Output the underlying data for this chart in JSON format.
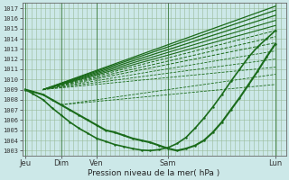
{
  "xlabel": "Pression niveau de la mer( hPa )",
  "bg_color": "#cce8e8",
  "grid_color": "#99bb99",
  "line_color": "#1a6b1a",
  "ylim": [
    1002.5,
    1017.5
  ],
  "yticks": [
    1003,
    1004,
    1005,
    1006,
    1007,
    1008,
    1009,
    1010,
    1011,
    1012,
    1013,
    1014,
    1015,
    1016,
    1017
  ],
  "xtick_labels": [
    "Jeu",
    "Dim",
    "Ven",
    "Sam",
    "Lun"
  ],
  "xtick_positions": [
    0,
    24,
    48,
    96,
    168
  ],
  "xlim": [
    -2,
    175
  ],
  "n_vlines": 58,
  "origin_x": 12,
  "origin_y": 1009.0,
  "lines": [
    {
      "points_x": [
        0,
        5,
        12,
        18,
        24,
        30,
        36,
        42,
        48,
        54,
        60,
        66,
        72,
        78,
        84,
        90,
        96,
        102,
        108,
        114,
        120,
        126,
        132,
        138,
        144,
        150,
        156,
        162,
        168
      ],
      "points_y": [
        1009,
        1008.8,
        1008.5,
        1008,
        1007.5,
        1007,
        1006.5,
        1006,
        1005.5,
        1005,
        1004.8,
        1004.5,
        1004.2,
        1004,
        1003.8,
        1003.5,
        1003.2,
        1003.0,
        1003.2,
        1003.5,
        1004.0,
        1004.8,
        1005.8,
        1007.0,
        1008.2,
        1009.5,
        1010.8,
        1012.2,
        1013.5
      ],
      "style": "-",
      "lw": 1.5,
      "marker": ".",
      "ms": 1.5,
      "zorder": 5
    },
    {
      "points_x": [
        12,
        168
      ],
      "points_y": [
        1009.0,
        1017.2
      ],
      "style": "-",
      "lw": 0.9,
      "marker": "none",
      "ms": 0,
      "zorder": 3
    },
    {
      "points_x": [
        12,
        168
      ],
      "points_y": [
        1009.0,
        1016.8
      ],
      "style": "-",
      "lw": 0.9,
      "marker": "none",
      "ms": 0,
      "zorder": 3
    },
    {
      "points_x": [
        12,
        168
      ],
      "points_y": [
        1009.0,
        1016.3
      ],
      "style": "-",
      "lw": 0.9,
      "marker": "none",
      "ms": 0,
      "zorder": 3
    },
    {
      "points_x": [
        12,
        168
      ],
      "points_y": [
        1009.0,
        1015.8
      ],
      "style": "-",
      "lw": 0.8,
      "marker": "none",
      "ms": 0,
      "zorder": 3
    },
    {
      "points_x": [
        12,
        168
      ],
      "points_y": [
        1009.0,
        1015.3
      ],
      "style": "-",
      "lw": 0.8,
      "marker": "none",
      "ms": 0,
      "zorder": 3
    },
    {
      "points_x": [
        12,
        168
      ],
      "points_y": [
        1009.0,
        1014.8
      ],
      "style": "--",
      "lw": 0.7,
      "marker": "none",
      "ms": 0,
      "zorder": 3
    },
    {
      "points_x": [
        12,
        168
      ],
      "points_y": [
        1009.0,
        1014.2
      ],
      "style": "--",
      "lw": 0.7,
      "marker": "none",
      "ms": 0,
      "zorder": 3
    },
    {
      "points_x": [
        12,
        168
      ],
      "points_y": [
        1009.0,
        1013.6
      ],
      "style": "--",
      "lw": 0.7,
      "marker": "none",
      "ms": 0,
      "zorder": 3
    },
    {
      "points_x": [
        12,
        168
      ],
      "points_y": [
        1009.0,
        1012.8
      ],
      "style": "--",
      "lw": 0.6,
      "marker": "none",
      "ms": 0,
      "zorder": 3
    },
    {
      "points_x": [
        12,
        168
      ],
      "points_y": [
        1009.0,
        1012.0
      ],
      "style": "--",
      "lw": 0.6,
      "marker": "none",
      "ms": 0,
      "zorder": 3
    },
    {
      "points_x": [
        12,
        168
      ],
      "points_y": [
        1009.0,
        1011.2
      ],
      "style": "--",
      "lw": 0.6,
      "marker": "none",
      "ms": 0,
      "zorder": 3
    },
    {
      "points_x": [
        24,
        168
      ],
      "points_y": [
        1007.5,
        1009.5
      ],
      "style": "--",
      "lw": 0.6,
      "marker": "none",
      "ms": 0,
      "zorder": 3
    },
    {
      "points_x": [
        24,
        168
      ],
      "points_y": [
        1007.5,
        1010.5
      ],
      "style": "--",
      "lw": 0.6,
      "marker": "none",
      "ms": 0,
      "zorder": 3
    },
    {
      "points_x": [
        0,
        5,
        12,
        18,
        24,
        30,
        36,
        42,
        48,
        54,
        60,
        66,
        72,
        78,
        84,
        90,
        96,
        102,
        108,
        114,
        120,
        126,
        132,
        138,
        144,
        150,
        156,
        162,
        168
      ],
      "points_y": [
        1009,
        1008.6,
        1008,
        1007.2,
        1006.5,
        1005.8,
        1005.2,
        1004.7,
        1004.2,
        1003.9,
        1003.6,
        1003.4,
        1003.2,
        1003.05,
        1003.0,
        1003.1,
        1003.3,
        1003.7,
        1004.3,
        1005.2,
        1006.2,
        1007.3,
        1008.5,
        1009.8,
        1011.0,
        1012.2,
        1013.2,
        1014.0,
        1014.8
      ],
      "style": "-",
      "lw": 1.2,
      "marker": ".",
      "ms": 1.5,
      "zorder": 4
    }
  ],
  "vline_color": "#3a7a3a",
  "vline_lw": 0.6
}
